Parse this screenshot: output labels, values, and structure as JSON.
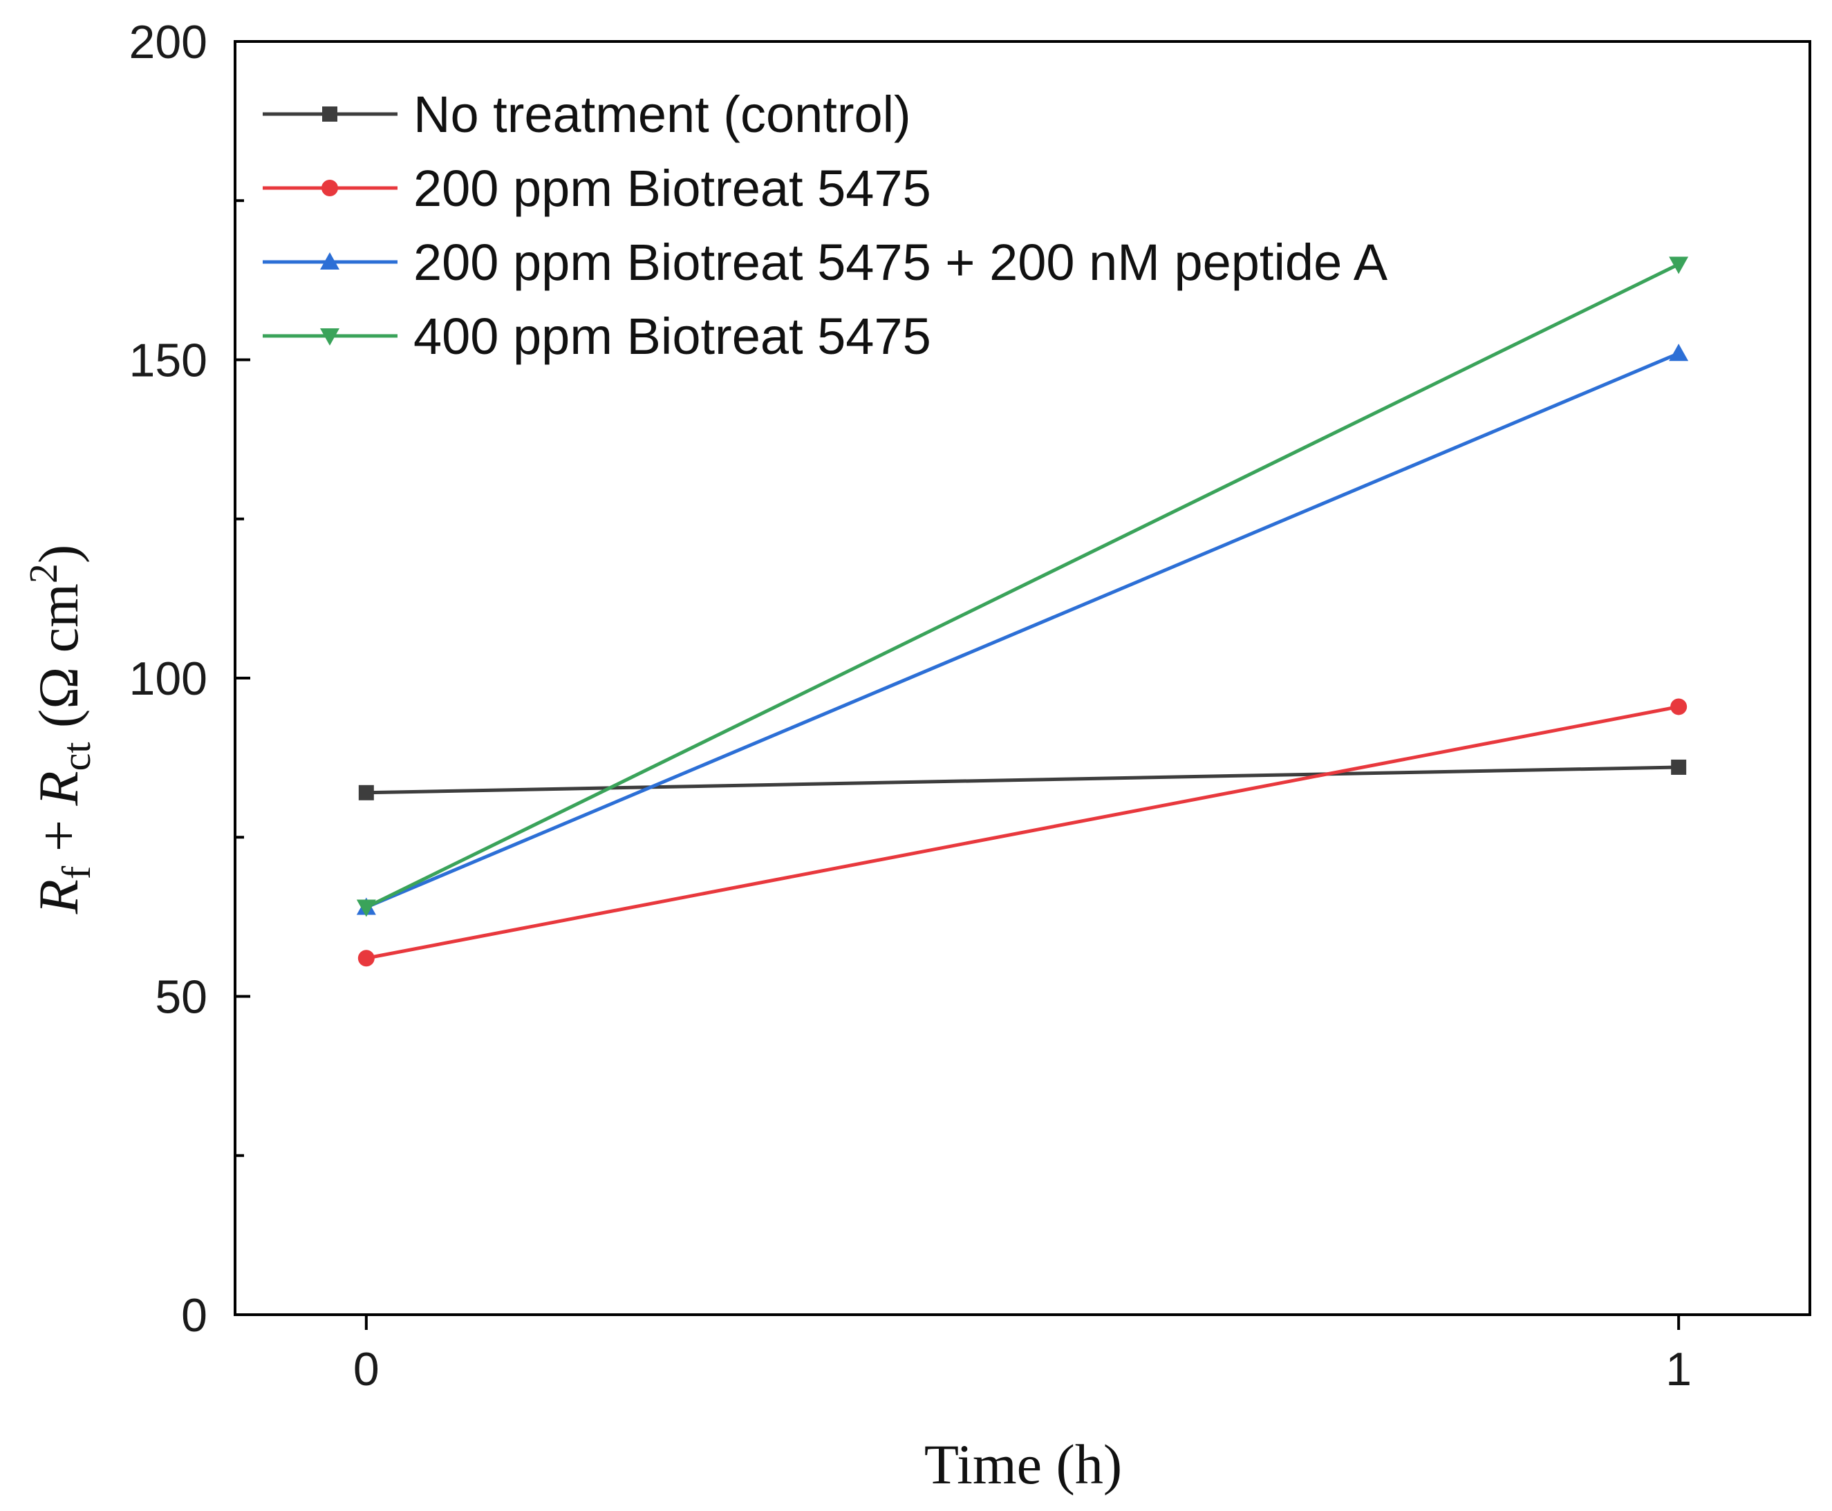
{
  "chart_data": {
    "type": "line",
    "x": [
      0,
      1
    ],
    "xticks": [
      "0",
      "1"
    ],
    "xlim": [
      -0.1,
      1.1
    ],
    "ylim": [
      0,
      200
    ],
    "yticks": [
      "0",
      "50",
      "100",
      "150",
      "200"
    ],
    "xlabel": "Time (h)",
    "ylabel": {
      "r1": "R",
      "sub1": "f",
      "plus": " + ",
      "r2": "R",
      "sub2": "ct",
      "unit_open": " (Ω cm",
      "sup": "2",
      "unit_close": ")"
    },
    "grid": false,
    "legend_position": "top-left",
    "series": [
      {
        "name": "No treatment (control)",
        "values": [
          82,
          86
        ],
        "color": "#3d3d3d",
        "marker": "square"
      },
      {
        "name": "200 ppm Biotreat 5475",
        "values": [
          56,
          95.5
        ],
        "color": "#e8383d",
        "marker": "circle"
      },
      {
        "name": "200 ppm Biotreat 5475 + 200 nM peptide A",
        "values": [
          64,
          151
        ],
        "color": "#2c6fd6",
        "marker": "triangle-up"
      },
      {
        "name": "400 ppm Biotreat 5475",
        "values": [
          64,
          165
        ],
        "color": "#3aa35a",
        "marker": "triangle-down"
      }
    ]
  }
}
